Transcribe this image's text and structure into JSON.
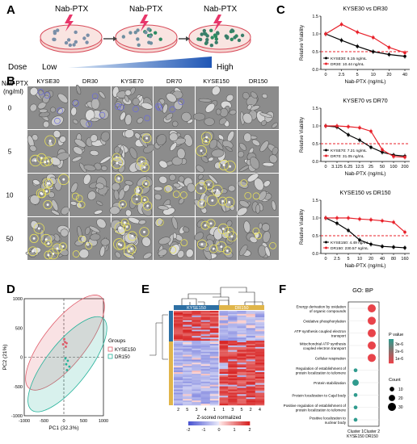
{
  "panel_labels": {
    "a": "A",
    "b": "B",
    "c": "C",
    "d": "D",
    "e": "E",
    "f": "F"
  },
  "panel_a": {
    "drug_labels": [
      "Nab-PTX",
      "Nab-PTX",
      "Nab-PTX"
    ],
    "dose_label": "Dose",
    "low_label": "Low",
    "high_label": "High"
  },
  "panel_b": {
    "row_axis_title_line1": "Nab-PTX",
    "row_axis_title_line2": "(ng/ml)",
    "columns": [
      "KYSE30",
      "DR30",
      "KYSE70",
      "DR70",
      "KYSE150",
      "DR150"
    ],
    "rows": [
      "0",
      "5",
      "10",
      "50"
    ]
  },
  "chart_data": [
    {
      "type": "line",
      "title": "KYSE30 vs DR30",
      "xlabel": "Nab-PTX (ng/mL)",
      "ylabel": "Relative Viability",
      "categories": [
        "0",
        "2.5",
        "5",
        "10",
        "20",
        "40"
      ],
      "ylim": [
        0,
        1.5
      ],
      "threshold": 0.5,
      "series": [
        {
          "name": "KYSE30: 6.15 ng/mL",
          "color": "#000000",
          "values": [
            1.0,
            0.82,
            0.65,
            0.5,
            0.42,
            0.37
          ]
        },
        {
          "name": "DR30: 10.44 ng/mL",
          "color": "#e8212a",
          "values": [
            1.0,
            1.27,
            1.05,
            0.9,
            0.62,
            0.47
          ]
        }
      ]
    },
    {
      "type": "line",
      "title": "KYSE70 vs DR70",
      "xlabel": "Nab-PTX (ng/mL)",
      "ylabel": "Relative Viability",
      "categories": [
        "0",
        "3.125",
        "6.25",
        "12.5",
        "25",
        "50",
        "100",
        "200"
      ],
      "ylim": [
        0,
        1.5
      ],
      "threshold": 0.5,
      "series": [
        {
          "name": "KYSE70: 7.21 ng/mL",
          "color": "#000000",
          "values": [
            1.0,
            0.97,
            0.75,
            0.6,
            0.4,
            0.26,
            0.18,
            0.15
          ]
        },
        {
          "name": "DR70: 31.05 ng/mL",
          "color": "#e8212a",
          "values": [
            1.0,
            1.0,
            0.98,
            0.95,
            0.85,
            0.33,
            0.14,
            0.12
          ]
        }
      ]
    },
    {
      "type": "line",
      "title": "KYSE150 vs DR150",
      "xlabel": "Nab-PTX (ng/mL)",
      "ylabel": "Relative Viability",
      "categories": [
        "0",
        "2.5",
        "5",
        "10",
        "20",
        "40",
        "80",
        "160"
      ],
      "ylim": [
        0,
        1.5
      ],
      "threshold": 0.5,
      "series": [
        {
          "name": "KYSE150: 4.49 ng/mL",
          "color": "#000000",
          "values": [
            1.0,
            0.85,
            0.65,
            0.38,
            0.26,
            0.2,
            0.18,
            0.16
          ]
        },
        {
          "name": "DR150: 230.57 ng/mL",
          "color": "#e8212a",
          "values": [
            1.0,
            1.0,
            1.0,
            0.97,
            0.95,
            0.92,
            0.88,
            0.6
          ]
        }
      ]
    },
    {
      "type": "scatter",
      "xlabel": "PC1 (32.3%)",
      "ylabel": "PC2 (21%)",
      "xlim": [
        -1000,
        1000
      ],
      "ylim": [
        -1000,
        1000
      ],
      "xticks": [
        "-1000",
        "-500",
        "0",
        "500",
        "1000"
      ],
      "yticks": [
        "1000",
        "500",
        "0",
        "-500",
        "-1000"
      ],
      "legend_title": "Groups",
      "series": [
        {
          "name": "KYSE150",
          "color": "#e05c6a",
          "points": [
            [
              -20,
              220
            ],
            [
              30,
              260
            ],
            [
              50,
              180
            ],
            [
              10,
              310
            ],
            [
              70,
              240
            ]
          ]
        },
        {
          "name": "DR150",
          "color": "#27b39b",
          "points": [
            [
              60,
              -120
            ],
            [
              100,
              -60
            ],
            [
              140,
              -160
            ],
            [
              80,
              -220
            ],
            [
              40,
              -20
            ]
          ]
        }
      ]
    },
    {
      "type": "heatmap",
      "headers": [
        "KYSE150",
        "DR150"
      ],
      "column_labels": [
        "2",
        "5",
        "3",
        "4",
        "1",
        "1",
        "3",
        "5",
        "2",
        "4"
      ],
      "colorbar_title": "Z-scored normalized",
      "colorbar_ticks": [
        "-2",
        "-1",
        "0",
        "1",
        "2"
      ]
    },
    {
      "type": "scatter",
      "title": "GO: BP",
      "categories_x": [
        "Cluster 1\nKYSE150",
        "Cluster 2\nDR150"
      ],
      "terms": [
        "Energy derivation by oxidation\nof organic compounds",
        "Oxidative phosphorylation",
        "ATP synthesis coupled electron\ntransport",
        "Mitochondrial ATP synthesis\ncoupled electron transport",
        "Cellular respiration",
        "Regulation of establishment of\nprotein localization to telomere",
        "Protein stabilization",
        "Protein localization to Cajal body",
        "Positive regulation of establishment of\nprotein localization to telomere",
        "Positive localization to\nnuclear body"
      ],
      "points": [
        {
          "term": 0,
          "cluster": 1,
          "count": 30,
          "pvalue": "low"
        },
        {
          "term": 1,
          "cluster": 1,
          "count": 30,
          "pvalue": "low"
        },
        {
          "term": 2,
          "cluster": 1,
          "count": 30,
          "pvalue": "low"
        },
        {
          "term": 3,
          "cluster": 1,
          "count": 30,
          "pvalue": "low"
        },
        {
          "term": 4,
          "cluster": 1,
          "count": 30,
          "pvalue": "low"
        },
        {
          "term": 5,
          "cluster": 0,
          "count": 5,
          "pvalue": "high"
        },
        {
          "term": 6,
          "cluster": 0,
          "count": 20,
          "pvalue": "high"
        },
        {
          "term": 7,
          "cluster": 0,
          "count": 5,
          "pvalue": "high"
        },
        {
          "term": 8,
          "cluster": 0,
          "count": 5,
          "pvalue": "high"
        },
        {
          "term": 9,
          "cluster": 0,
          "count": 5,
          "pvalue": "high"
        }
      ],
      "pvalue_legend_title": "P value",
      "pvalue_ticks": [
        "3e-6",
        "2e-6",
        "1e-6"
      ],
      "count_legend_title": "Count",
      "count_ticks": [
        10,
        20,
        30
      ]
    }
  ]
}
